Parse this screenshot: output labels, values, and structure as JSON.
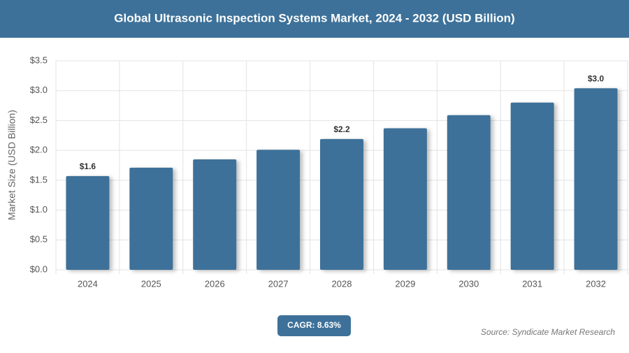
{
  "chart_data": {
    "type": "bar",
    "title": "Global Ultrasonic Inspection Systems Market, 2024 - 2032 (USD Billion)",
    "y_label": "Market Size (USD Billion)",
    "categories": [
      "2024",
      "2025",
      "2026",
      "2027",
      "2028",
      "2029",
      "2030",
      "2031",
      "2032"
    ],
    "values": [
      1.57,
      1.71,
      1.85,
      2.01,
      2.19,
      2.37,
      2.59,
      2.8,
      3.04
    ],
    "value_labels": [
      "$1.6",
      null,
      null,
      null,
      "$2.2",
      null,
      null,
      null,
      "$3.0"
    ],
    "color": "#3d7199",
    "ylim": [
      0,
      3.5
    ],
    "yticks": [
      {
        "value": 0,
        "label": "$0.0"
      },
      {
        "value": 0.5,
        "label": "$0.5"
      },
      {
        "value": 1,
        "label": "$1.0"
      },
      {
        "value": 1.5,
        "label": "$1.5"
      },
      {
        "value": 2,
        "label": "$2.0"
      },
      {
        "value": 2.5,
        "label": "$2.5"
      },
      {
        "value": 3,
        "label": "$3.0"
      },
      {
        "value": 3.5,
        "label": "$3.5"
      }
    ],
    "grid": true,
    "annotation": "CAGR: 8.63%",
    "source": "Source: Syndicate Market Research"
  }
}
